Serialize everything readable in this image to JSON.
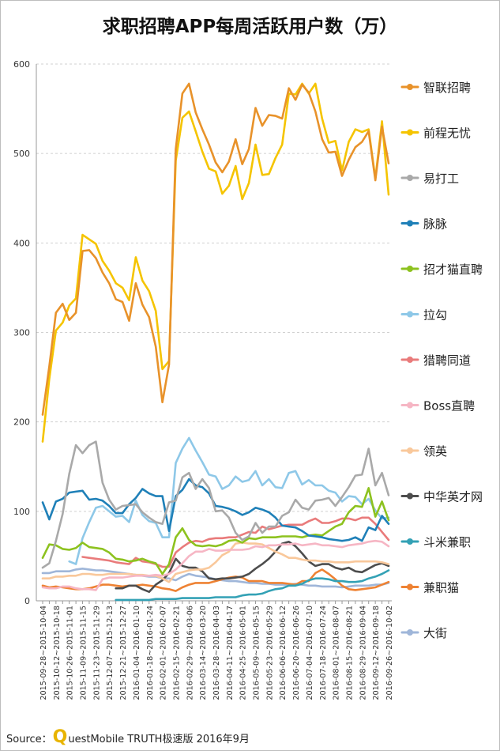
{
  "chart_data": {
    "type": "line",
    "title": "求职招聘APP每周活跃用户数（万）",
    "ylim": [
      0,
      600
    ],
    "yticks": [
      0,
      100,
      200,
      300,
      400,
      500,
      600
    ],
    "grid": true,
    "legend_position": "right",
    "x": [
      "2015-09-28~2015-10-04",
      "2015-10-05~2015-10-11",
      "2015-10-12~2015-10-18",
      "2015-10-19~2015-10-25",
      "2015-10-26~2015-11-01",
      "2015-11-02~2015-11-08",
      "2015-11-09~2015-11-15",
      "2015-11-16~2015-11-22",
      "2015-11-23~2015-11-29",
      "2015-11-30~2015-12-06",
      "2015-12-07~2015-12-13",
      "2015-12-14~2015-12-20",
      "2015-12-21~2015-12-27",
      "2015-12-28~2016-01-03",
      "2016-01-04~2016-01-10",
      "2016-01-11~2016-01-17",
      "2016-01-18~2016-01-24",
      "2016-01-25~2016-01-31",
      "2016-02-01~2016-02-07",
      "2016-02-08~2016-02-14",
      "2016-02-15~2016-02-21",
      "2016-02-22~2016-02-28",
      "2016-02-29~2016-03-06",
      "2016-03-07~2016-03-13",
      "2016-03-14~2016-03-20",
      "2016-03-21~2016-03-27",
      "2016-03-28~2016-04-03",
      "2016-04-04~2016-04-10",
      "2016-04-11~2016-04-17",
      "2016-04-18~2016-04-24",
      "2016-04-25~2016-05-01",
      "2016-05-02~2016-05-08",
      "2016-05-09~2016-05-15",
      "2016-05-16~2016-05-22",
      "2016-05-23~2016-05-29",
      "2016-05-30~2016-06-05",
      "2016-06-06~2016-06-12",
      "2016-06-13~2016-06-19",
      "2016-06-20~2016-06-26",
      "2016-06-27~2016-07-03",
      "2016-07-04~2016-07-10",
      "2016-07-11~2016-07-17",
      "2016-07-18~2016-07-24",
      "2016-07-25~2016-07-31",
      "2016-08-01~2016-08-07",
      "2016-08-08~2016-08-14",
      "2016-08-15~2016-08-21",
      "2016-08-22~2016-08-28",
      "2016-08-29~2016-09-04",
      "2016-09-05~2016-09-11",
      "2016-09-12~2016-09-18",
      "2016-09-19~2016-09-25",
      "2016-09-26~2016-10-02"
    ],
    "x_tick_labels": [
      "2015-09-28~2015-10-04",
      "2015-10-12~2015-10-18",
      "2015-10-26~2015-11-01",
      "2015-11-09~2015-11-15",
      "2015-11-23~2015-11-29",
      "2015-12-07~2015-12-13",
      "2015-12-21~2015-12-27",
      "2016-01-04~2016-01-10",
      "2016-01-18~2016-01-24",
      "2016-02-01~2016-02-07",
      "2016-02-15~2016-02-21",
      "2016-02-29~2016-03-06",
      "2016-03-14~2016-03-20",
      "2016-03-28~2016-04-03",
      "2016-04-11~2016-04-17",
      "2016-04-25~2016-05-01",
      "2016-05-09~2016-05-15",
      "2016-05-23~2016-05-29",
      "2016-06-06~2016-06-12",
      "2016-06-20~2016-06-26",
      "2016-07-04~2016-07-10",
      "2016-07-18~2016-07-24",
      "2016-08-01~2016-08-07",
      "2016-08-15~2016-08-21",
      "2016-08-29~2016-09-04",
      "2016-09-12~2016-09-18",
      "2016-09-26~2016-10-02"
    ],
    "series": [
      {
        "name": "智联招聘",
        "color": "#E8922A",
        "values": [
          208,
          262,
          322,
          332,
          314,
          322,
          391,
          392,
          383,
          367,
          355,
          337,
          334,
          313,
          355,
          331,
          317,
          284,
          222,
          264,
          505,
          567,
          578,
          546,
          527,
          510,
          490,
          479,
          491,
          516,
          488,
          505,
          551,
          531,
          543,
          542,
          539,
          573,
          560,
          577,
          568,
          547,
          516,
          501,
          502,
          475,
          493,
          507,
          513,
          525,
          470,
          530,
          489
        ]
      },
      {
        "name": "前程无忧",
        "color": "#F5C400",
        "values": [
          178,
          248,
          302,
          311,
          330,
          338,
          409,
          404,
          399,
          380,
          369,
          355,
          350,
          336,
          384,
          358,
          346,
          324,
          259,
          268,
          492,
          540,
          547,
          525,
          502,
          483,
          480,
          455,
          464,
          486,
          449,
          467,
          510,
          476,
          477,
          495,
          510,
          567,
          566,
          578,
          567,
          578,
          539,
          512,
          514,
          481,
          513,
          527,
          524,
          527,
          472,
          536,
          454
        ]
      },
      {
        "name": "易打工",
        "color": "#A9A9A9",
        "values": [
          37,
          42,
          67,
          97,
          142,
          174,
          165,
          174,
          178,
          132,
          113,
          102,
          106,
          107,
          108,
          99,
          93,
          88,
          86,
          110,
          112,
          138,
          143,
          125,
          136,
          126,
          100,
          101,
          93,
          76,
          68,
          72,
          87,
          76,
          83,
          83,
          95,
          99,
          113,
          104,
          102,
          112,
          113,
          115,
          106,
          116,
          127,
          140,
          141,
          170,
          129,
          143,
          118
        ]
      },
      {
        "name": "脉脉",
        "color": "#1F80B8",
        "values": [
          110,
          91,
          111,
          114,
          121,
          122,
          123,
          113,
          114,
          112,
          106,
          98,
          98,
          108,
          115,
          125,
          120,
          117,
          117,
          78,
          117,
          124,
          136,
          129,
          127,
          120,
          106,
          105,
          103,
          100,
          96,
          99,
          104,
          102,
          99,
          93,
          84,
          83,
          82,
          78,
          73,
          72,
          71,
          69,
          68,
          67,
          68,
          71,
          67,
          82,
          79,
          95,
          86
        ]
      },
      {
        "name": "招才猫直聘",
        "color": "#8DC21F",
        "values": [
          48,
          63,
          62,
          58,
          57,
          59,
          65,
          60,
          59,
          58,
          54,
          47,
          46,
          44,
          45,
          47,
          44,
          42,
          30,
          41,
          71,
          81,
          68,
          62,
          61,
          62,
          61,
          63,
          67,
          68,
          65,
          70,
          69,
          71,
          71,
          71,
          72,
          72,
          72,
          71,
          73,
          74,
          73,
          78,
          83,
          86,
          99,
          106,
          105,
          126,
          94,
          111,
          90
        ]
      },
      {
        "name": "拉勾",
        "color": "#8EC8E8",
        "values": [
          null,
          null,
          null,
          null,
          44,
          41,
          70,
          88,
          104,
          106,
          100,
          94,
          95,
          88,
          112,
          96,
          89,
          87,
          71,
          71,
          154,
          170,
          182,
          168,
          155,
          141,
          139,
          125,
          129,
          139,
          133,
          135,
          145,
          129,
          136,
          127,
          126,
          143,
          145,
          130,
          135,
          129,
          129,
          123,
          121,
          111,
          117,
          116,
          108,
          114,
          101,
          92,
          93
        ]
      },
      {
        "name": "猎聘同道",
        "color": "#E97B7B",
        "values": [
          null,
          null,
          null,
          null,
          null,
          null,
          49,
          48,
          47,
          46,
          45,
          43,
          42,
          41,
          48,
          44,
          43,
          41,
          38,
          38,
          54,
          60,
          65,
          67,
          66,
          69,
          70,
          70,
          71,
          71,
          74,
          77,
          76,
          83,
          80,
          82,
          84,
          85,
          85,
          85,
          89,
          92,
          87,
          87,
          89,
          92,
          92,
          90,
          93,
          93,
          86,
          77,
          68
        ]
      },
      {
        "name": "Boss直聘",
        "color": "#F6B6C4",
        "values": [
          15,
          14,
          14,
          16,
          16,
          14,
          13,
          13,
          12,
          24,
          26,
          26,
          26,
          27,
          28,
          28,
          28,
          29,
          28,
          30,
          35,
          42,
          50,
          55,
          55,
          58,
          56,
          56,
          57,
          57,
          57,
          58,
          61,
          60,
          62,
          62,
          63,
          63,
          64,
          62,
          63,
          64,
          62,
          62,
          61,
          60,
          62,
          63,
          64,
          66,
          67,
          66,
          61
        ]
      },
      {
        "name": "领英",
        "color": "#F9C89B",
        "values": [
          25,
          25,
          27,
          27,
          28,
          28,
          30,
          30,
          29,
          29,
          30,
          30,
          30,
          30,
          29,
          29,
          28,
          28,
          25,
          21,
          30,
          32,
          34,
          35,
          35,
          37,
          43,
          51,
          55,
          64,
          65,
          64,
          64,
          63,
          59,
          55,
          52,
          48,
          48,
          46,
          45,
          45,
          44,
          44,
          43,
          43,
          43,
          44,
          44,
          44,
          44,
          43,
          41
        ]
      },
      {
        "name": "中华英才网",
        "color": "#4D4D4D",
        "values": [
          null,
          null,
          null,
          null,
          null,
          null,
          null,
          null,
          null,
          null,
          null,
          14,
          14,
          17,
          17,
          13,
          10,
          18,
          23,
          31,
          47,
          39,
          37,
          37,
          33,
          25,
          24,
          25,
          25,
          26,
          27,
          30,
          36,
          41,
          47,
          55,
          64,
          66,
          61,
          53,
          44,
          39,
          41,
          41,
          37,
          35,
          37,
          33,
          32,
          36,
          40,
          42,
          39
        ]
      },
      {
        "name": "斗米兼职",
        "color": "#33A1B5",
        "values": [
          null,
          null,
          null,
          null,
          null,
          null,
          null,
          null,
          null,
          null,
          null,
          1,
          1,
          1,
          1,
          1,
          1,
          2,
          2,
          2,
          2,
          3,
          3,
          3,
          3,
          3,
          4,
          4,
          4,
          4,
          6,
          7,
          7,
          8,
          11,
          13,
          14,
          17,
          17,
          19,
          23,
          25,
          25,
          24,
          22,
          22,
          21,
          21,
          22,
          25,
          27,
          30,
          34
        ]
      },
      {
        "name": "兼职猫",
        "color": "#EE8233",
        "values": [
          17,
          15,
          16,
          15,
          14,
          13,
          13,
          14,
          16,
          18,
          18,
          17,
          16,
          17,
          17,
          18,
          17,
          16,
          14,
          13,
          11,
          15,
          18,
          20,
          20,
          20,
          22,
          24,
          26,
          27,
          26,
          22,
          22,
          22,
          20,
          20,
          20,
          19,
          18,
          22,
          22,
          31,
          35,
          30,
          24,
          17,
          13,
          12,
          13,
          14,
          15,
          18,
          21
        ]
      },
      {
        "name": "大街",
        "color": "#9FB6D9",
        "values": [
          31,
          31,
          33,
          33,
          33,
          35,
          36,
          35,
          34,
          34,
          33,
          32,
          31,
          30,
          29,
          28,
          27,
          27,
          25,
          25,
          23,
          27,
          30,
          28,
          27,
          26,
          24,
          23,
          22,
          22,
          21,
          20,
          20,
          19,
          19,
          18,
          18,
          18,
          19,
          18,
          17,
          17,
          16,
          16,
          16,
          15,
          16,
          17,
          17,
          17,
          18,
          18,
          20
        ]
      }
    ]
  },
  "source": {
    "prefix": "Source：",
    "q": "Q",
    "rest": "uestMobile TRUTH极速版 2016年9月"
  }
}
